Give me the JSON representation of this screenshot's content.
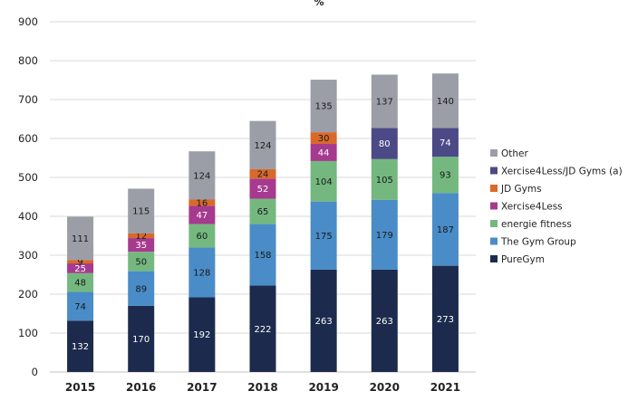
{
  "chart_data": {
    "type": "bar",
    "stacked": true,
    "unit_label": "%",
    "title": "",
    "xlabel": "",
    "ylabel": "",
    "ylim": [
      0,
      900
    ],
    "yticks": [
      0,
      100,
      200,
      300,
      400,
      500,
      600,
      700,
      800,
      900
    ],
    "grid": true,
    "legend_position": "right",
    "categories": [
      "2015",
      "2016",
      "2017",
      "2018",
      "2019",
      "2020",
      "2021"
    ],
    "series": [
      {
        "name": "PureGym",
        "color": "#1c2b4d",
        "label_color": "#ffffff",
        "values": [
          132,
          170,
          192,
          222,
          263,
          263,
          273
        ]
      },
      {
        "name": "The Gym Group",
        "color": "#4a8cc7",
        "label_color": "#1a1a1a",
        "values": [
          74,
          89,
          128,
          158,
          175,
          179,
          187
        ]
      },
      {
        "name": "energie fitness",
        "color": "#74b87f",
        "label_color": "#1a1a1a",
        "values": [
          48,
          50,
          60,
          65,
          104,
          105,
          93
        ]
      },
      {
        "name": "Xercise4Less",
        "color": "#a63a8f",
        "label_color": "#ffffff",
        "values": [
          25,
          35,
          47,
          52,
          44,
          null,
          null
        ]
      },
      {
        "name": "JD Gyms",
        "color": "#d9692a",
        "label_color": "#1a1a1a",
        "values": [
          9,
          12,
          16,
          24,
          30,
          null,
          null
        ]
      },
      {
        "name": "Xercise4Less/JD Gyms (a)",
        "color": "#4b4a86",
        "label_color": "#ffffff",
        "values": [
          null,
          null,
          null,
          null,
          null,
          80,
          74
        ]
      },
      {
        "name": "Other",
        "color": "#9b9ea6",
        "label_color": "#1a1a1a",
        "values": [
          111,
          115,
          124,
          124,
          135,
          137,
          140
        ]
      }
    ],
    "legend_order": [
      "Other",
      "Xercise4Less/JD Gyms (a)",
      "JD Gyms",
      "Xercise4Less",
      "energie fitness",
      "The Gym Group",
      "PureGym"
    ]
  }
}
